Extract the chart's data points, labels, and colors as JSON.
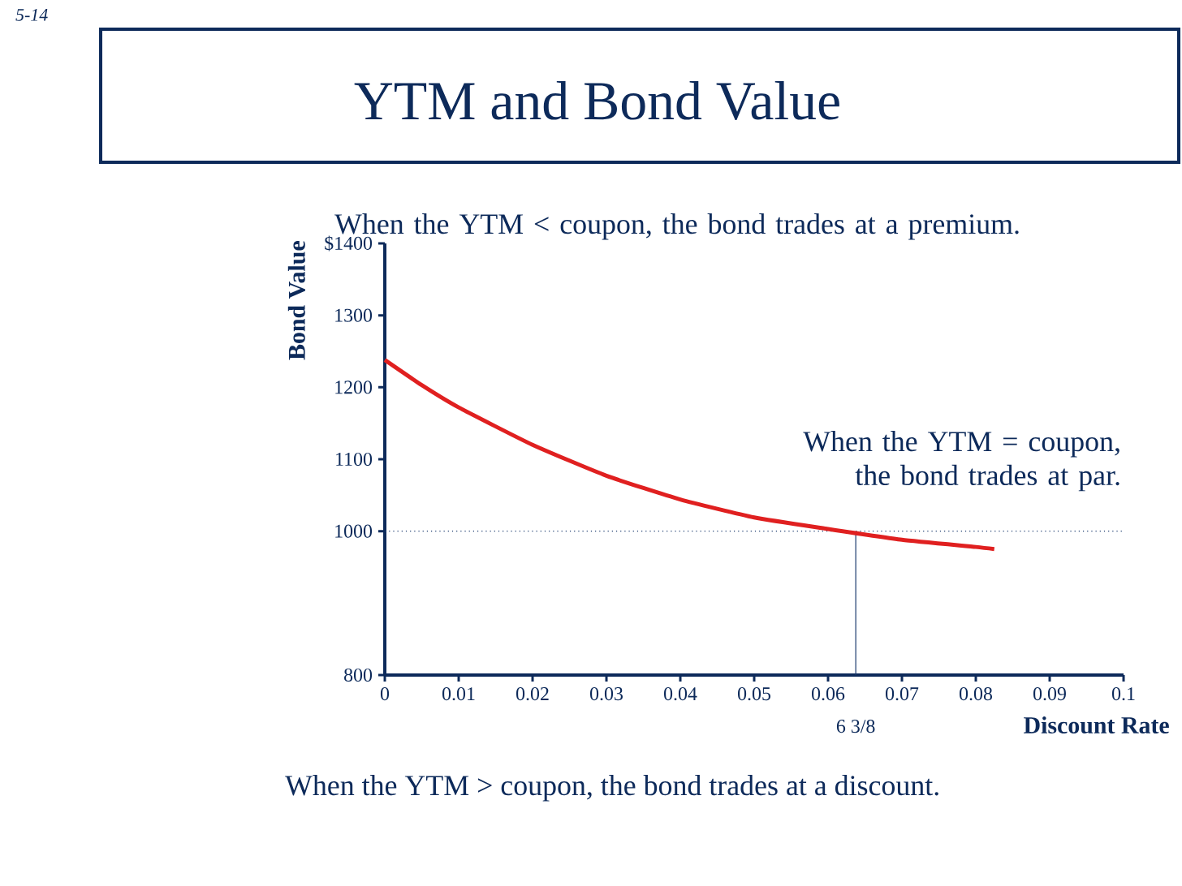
{
  "chart_data": {
    "type": "line",
    "title": "YTM and Bond Value",
    "xlabel": "Discount Rate",
    "ylabel": "Bond Value",
    "x": [
      0,
      0.005,
      0.01,
      0.02,
      0.03,
      0.04,
      0.05,
      0.06,
      0.07,
      0.08,
      0.0825
    ],
    "series": [
      {
        "color": "#e02020",
        "values": [
          1238,
          1203,
          1172,
          1120,
          1077,
          1044,
          1019,
          1003,
          988,
          978,
          975
        ]
      }
    ],
    "xlim": [
      0,
      0.1
    ],
    "xticks": [
      0,
      0.01,
      0.02,
      0.03,
      0.04,
      0.05,
      0.06,
      0.07,
      0.08,
      0.09,
      0.1
    ],
    "ylim": [
      800,
      1400
    ],
    "yticks": [
      800,
      1000,
      1100,
      1200,
      1300,
      {
        "value": 1400,
        "label": "$1400"
      }
    ],
    "ref_lines": [
      {
        "axis": "y",
        "value": 1000,
        "line_style": "dotted",
        "color": "#1a3a6e"
      },
      {
        "axis": "x",
        "value": 0.06375,
        "label": "6 3/8",
        "line_style": "solid",
        "color": "#1a3a6e"
      }
    ],
    "annotations": [
      "5-14",
      "When the YTM < coupon, the bond trades at a premium.",
      "When the YTM = coupon, the bond trades at par.",
      "When the YTM > coupon, the bond trades at a discount."
    ],
    "grid": false,
    "marker": "none",
    "line_style": "solid"
  }
}
